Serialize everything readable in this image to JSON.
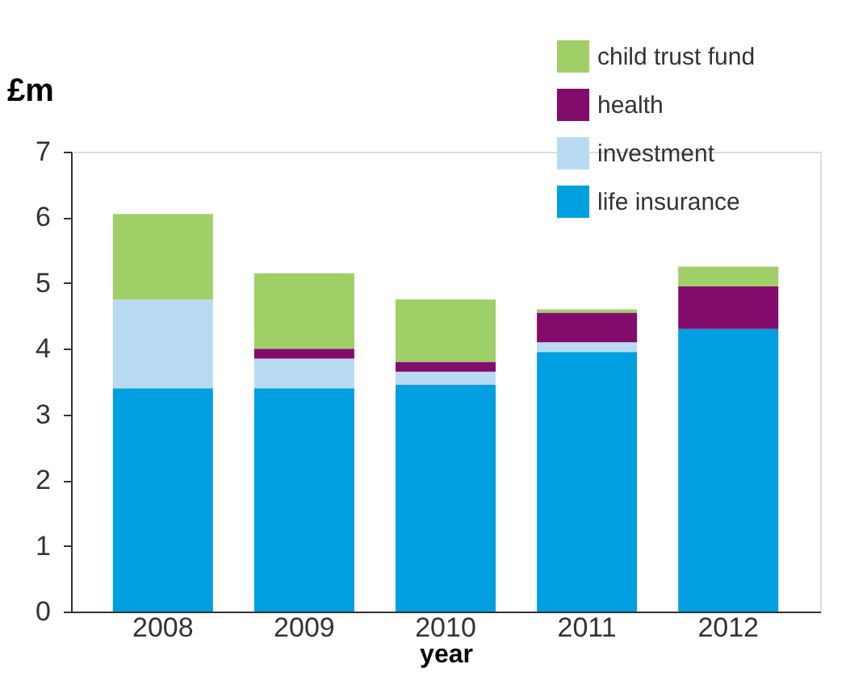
{
  "chart_data": {
    "type": "bar",
    "stacked": true,
    "ylabel": "£m",
    "xlabel": "year",
    "categories": [
      "2008",
      "2009",
      "2010",
      "2011",
      "2012"
    ],
    "series": [
      {
        "name": "life insurance",
        "color": "#009fdf",
        "values": [
          3.4,
          3.4,
          3.45,
          3.95,
          4.3
        ]
      },
      {
        "name": "investment",
        "color": "#b8dbf2",
        "values": [
          1.35,
          0.45,
          0.2,
          0.15,
          0
        ]
      },
      {
        "name": "health",
        "color": "#820c6c",
        "values": [
          0,
          0.15,
          0.15,
          0.45,
          0.65
        ]
      },
      {
        "name": "child trust fund",
        "color": "#a0ce67",
        "values": [
          1.3,
          1.15,
          0.95,
          0.05,
          0.3
        ]
      }
    ],
    "ylim": [
      0,
      7
    ],
    "yticks": [
      0,
      1,
      2,
      3,
      4,
      5,
      6,
      7
    ],
    "grid": false,
    "legend": "top right"
  }
}
